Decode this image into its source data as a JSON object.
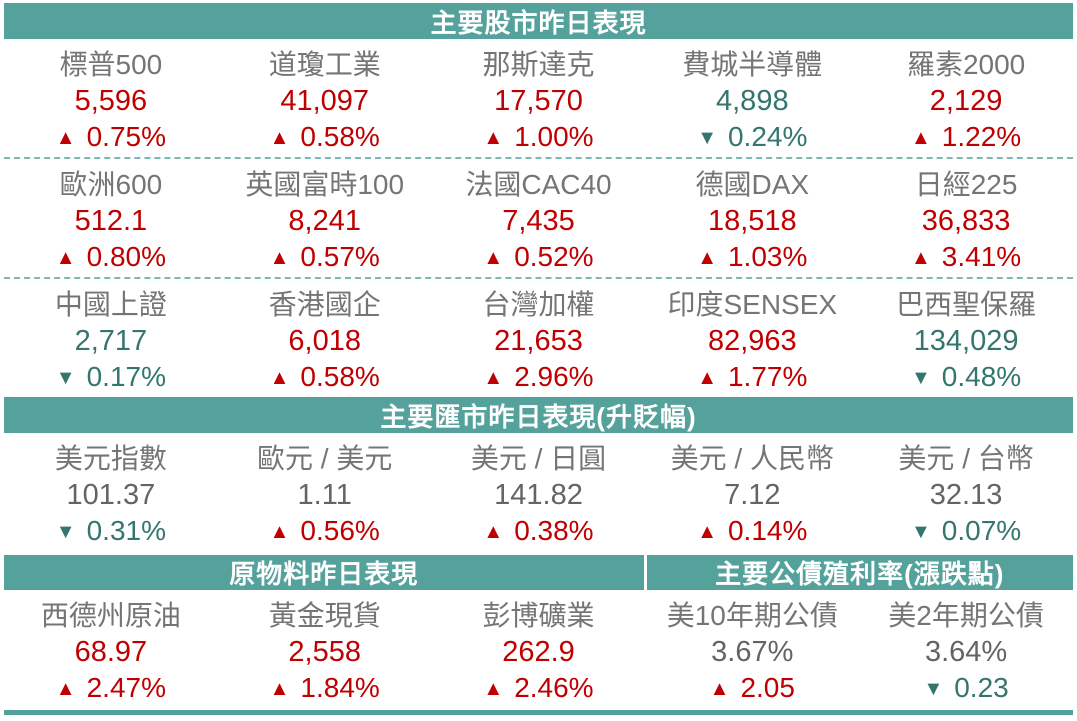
{
  "colors": {
    "header_bg": "#55a19b",
    "up_red": "#c00000",
    "down_teal": "#34766e",
    "label_gray": "#757575",
    "neutral_value_gray": "#646464"
  },
  "chart_data": [
    {
      "type": "table",
      "title": "主要股市昨日表現",
      "rows": [
        [
          {
            "name": "標普500",
            "value": "5,596",
            "tri": "▲",
            "change": "0.75%",
            "direction": "up"
          },
          {
            "name": "道瓊工業",
            "value": "41,097",
            "tri": "▲",
            "change": "0.58%",
            "direction": "up"
          },
          {
            "name": "那斯達克",
            "value": "17,570",
            "tri": "▲",
            "change": "1.00%",
            "direction": "up"
          },
          {
            "name": "費城半導體",
            "value": "4,898",
            "tri": "▼",
            "change": "0.24%",
            "direction": "down"
          },
          {
            "name": "羅素2000",
            "value": "2,129",
            "tri": "▲",
            "change": "1.22%",
            "direction": "up"
          }
        ],
        [
          {
            "name": "歐洲600",
            "value": "512.1",
            "tri": "▲",
            "change": "0.80%",
            "direction": "up"
          },
          {
            "name": "英國富時100",
            "value": "8,241",
            "tri": "▲",
            "change": "0.57%",
            "direction": "up"
          },
          {
            "name": "法國CAC40",
            "value": "7,435",
            "tri": "▲",
            "change": "0.52%",
            "direction": "up"
          },
          {
            "name": "德國DAX",
            "value": "18,518",
            "tri": "▲",
            "change": "1.03%",
            "direction": "up"
          },
          {
            "name": "日經225",
            "value": "36,833",
            "tri": "▲",
            "change": "3.41%",
            "direction": "up"
          }
        ],
        [
          {
            "name": "中國上證",
            "value": "2,717",
            "tri": "▼",
            "change": "0.17%",
            "direction": "down"
          },
          {
            "name": "香港國企",
            "value": "6,018",
            "tri": "▲",
            "change": "0.58%",
            "direction": "up"
          },
          {
            "name": "台灣加權",
            "value": "21,653",
            "tri": "▲",
            "change": "2.96%",
            "direction": "up"
          },
          {
            "name": "印度SENSEX",
            "value": "82,963",
            "tri": "▲",
            "change": "1.77%",
            "direction": "up"
          },
          {
            "name": "巴西聖保羅",
            "value": "134,029",
            "tri": "▼",
            "change": "0.48%",
            "direction": "down"
          }
        ]
      ]
    },
    {
      "type": "table",
      "title": "主要匯市昨日表現(升貶幅)",
      "rows": [
        [
          {
            "name": "美元指數",
            "value": "101.37",
            "tri": "▼",
            "change": "0.31%",
            "direction": "down"
          },
          {
            "name": "歐元 / 美元",
            "value": "1.11",
            "tri": "▲",
            "change": "0.56%",
            "direction": "up"
          },
          {
            "name": "美元 / 日圓",
            "value": "141.82",
            "tri": "▲",
            "change": "0.38%",
            "direction": "up"
          },
          {
            "name": "美元 / 人民幣",
            "value": "7.12",
            "tri": "▲",
            "change": "0.14%",
            "direction": "up"
          },
          {
            "name": "美元 / 台幣",
            "value": "32.13",
            "tri": "▼",
            "change": "0.07%",
            "direction": "down"
          }
        ]
      ]
    },
    {
      "type": "table",
      "title": "原物料昨日表現",
      "rows": [
        [
          {
            "name": "西德州原油",
            "value": "68.97",
            "tri": "▲",
            "change": "2.47%",
            "direction": "up"
          },
          {
            "name": "黃金現貨",
            "value": "2,558",
            "tri": "▲",
            "change": "1.84%",
            "direction": "up"
          },
          {
            "name": "彭博礦業",
            "value": "262.9",
            "tri": "▲",
            "change": "2.46%",
            "direction": "up"
          }
        ]
      ]
    },
    {
      "type": "table",
      "title": "主要公債殖利率(漲跌點)",
      "rows": [
        [
          {
            "name": "美10年期公債",
            "value": "3.67%",
            "tri": "▲",
            "change": "2.05",
            "direction": "up"
          },
          {
            "name": "美2年期公債",
            "value": "3.64%",
            "tri": "▼",
            "change": "0.23",
            "direction": "down"
          }
        ]
      ]
    }
  ]
}
